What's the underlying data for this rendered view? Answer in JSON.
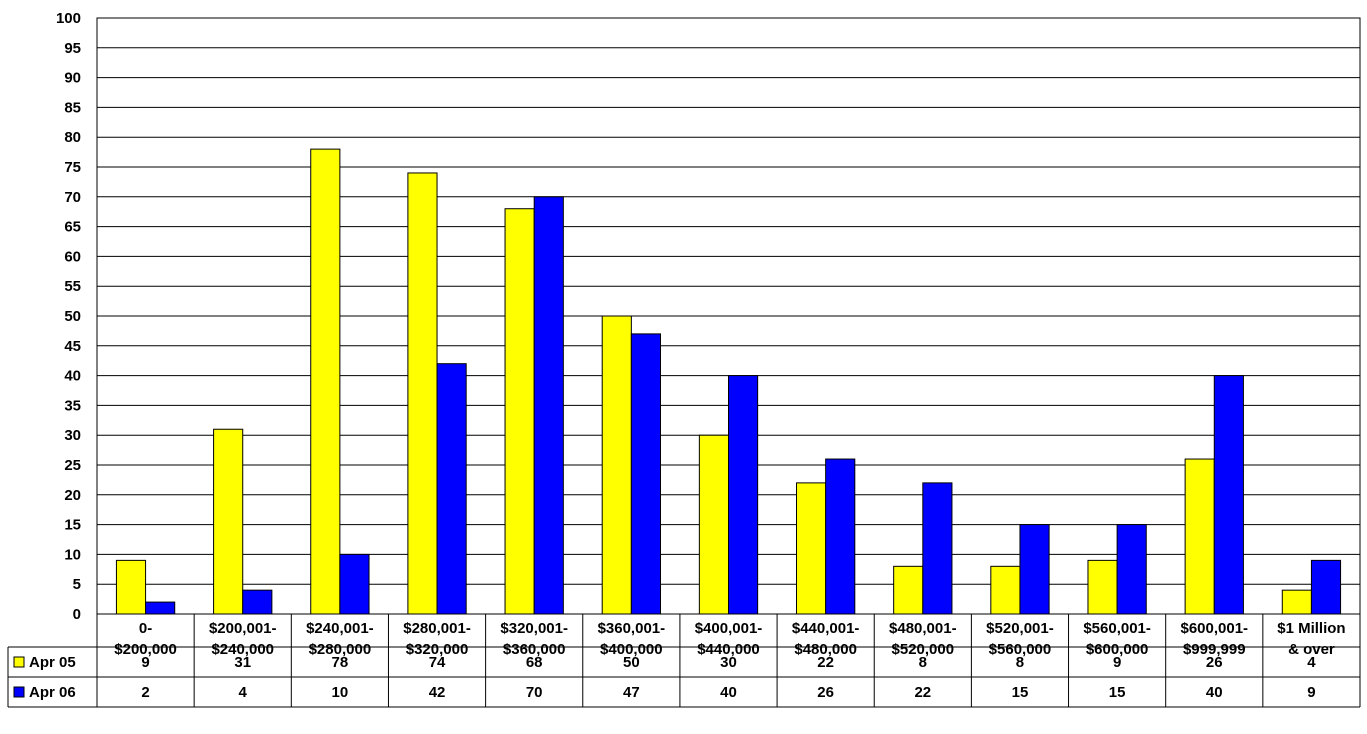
{
  "chart_data": {
    "type": "bar",
    "categories": [
      [
        "0-",
        "$200,000"
      ],
      [
        "$200,001-",
        "$240,000"
      ],
      [
        "$240,001-",
        "$280,000"
      ],
      [
        "$280,001-",
        "$320,000"
      ],
      [
        "$320,001-",
        "$360,000"
      ],
      [
        "$360,001-",
        "$400,000"
      ],
      [
        "$400,001-",
        "$440,000"
      ],
      [
        "$440,001-",
        "$480,000"
      ],
      [
        "$480,001-",
        "$520,000"
      ],
      [
        "$520,001-",
        "$560,000"
      ],
      [
        "$560,001-",
        "$600,000"
      ],
      [
        "$600,001-",
        "$999,999"
      ],
      [
        "$1 Million",
        "& over"
      ]
    ],
    "series": [
      {
        "name": "Apr 05",
        "color": "#FFFF00",
        "values": [
          9,
          31,
          78,
          74,
          68,
          50,
          30,
          22,
          8,
          8,
          9,
          26,
          4
        ]
      },
      {
        "name": "Apr 06",
        "color": "#0000FF",
        "values": [
          2,
          4,
          10,
          42,
          70,
          47,
          40,
          26,
          22,
          15,
          15,
          40,
          9
        ]
      }
    ],
    "ylim": [
      0,
      100
    ],
    "ytick_step": 5,
    "grid": true,
    "legend": "data-table-below"
  }
}
